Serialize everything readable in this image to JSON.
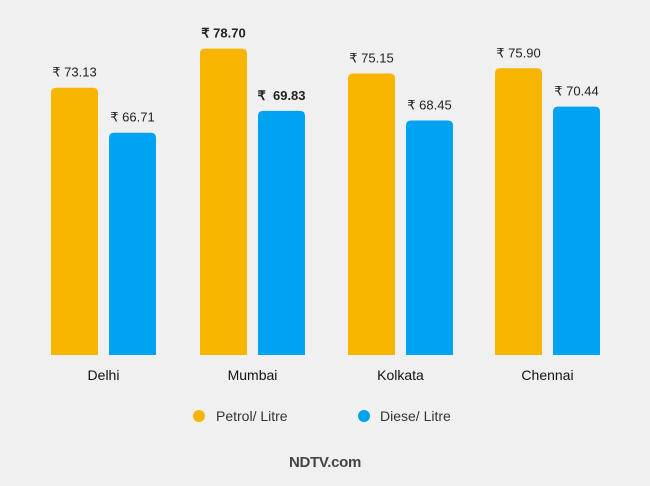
{
  "chart_data": {
    "type": "bar",
    "categories": [
      "Delhi",
      "Mumbai",
      "Kolkata",
      "Chennai"
    ],
    "series": [
      {
        "name": "Petrol/ Litre",
        "color": "#f7b500",
        "values": [
          73.13,
          78.7,
          75.15,
          75.9
        ]
      },
      {
        "name": "Diese/ Litre",
        "color": "#00a2f2",
        "values": [
          66.71,
          69.83,
          68.45,
          70.44
        ]
      }
    ],
    "labels": [
      [
        "₹ 73.13",
        "₹ 66.71"
      ],
      [
        "₹ 78.70",
        "₹  69.83"
      ],
      [
        "₹ 75.15",
        "₹ 68.45"
      ],
      [
        "₹ 75.90",
        "₹ 70.44"
      ]
    ],
    "bold_labels": [
      [
        false,
        false
      ],
      [
        true,
        true
      ],
      [
        false,
        false
      ],
      [
        false,
        false
      ]
    ],
    "legend_position": "bottom",
    "grid": false
  },
  "footer": {
    "brand": "NDTV.com"
  }
}
